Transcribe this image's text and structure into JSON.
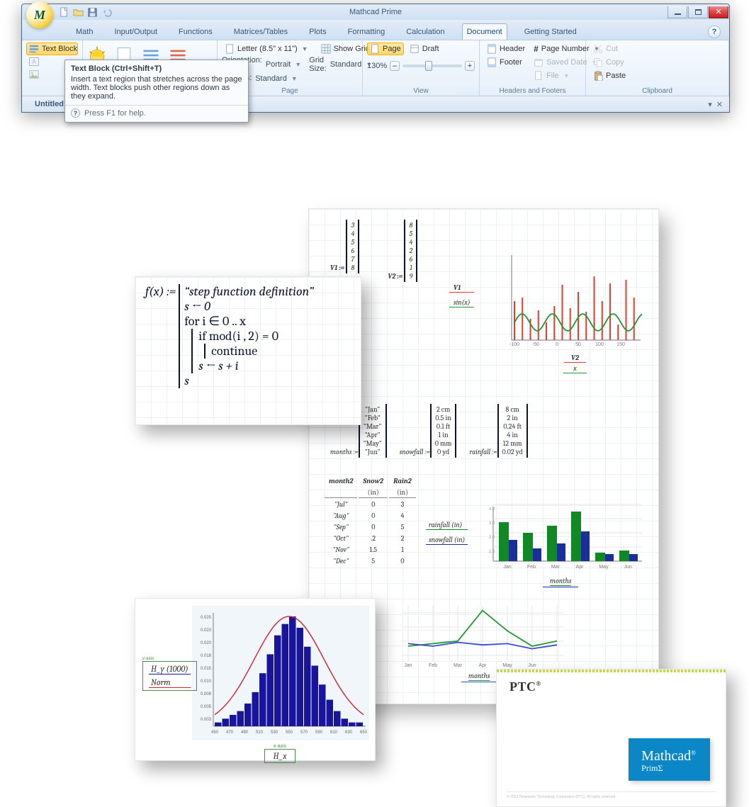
{
  "window": {
    "title": "Mathcad Prime"
  },
  "qat": {
    "orb": "M"
  },
  "tabs": {
    "items": [
      "Math",
      "Input/Output",
      "Functions",
      "Matrices/Tables",
      "Plots",
      "Formatting",
      "Calculation",
      "Document",
      "Getting Started"
    ],
    "active": "Document"
  },
  "ribbon": {
    "textblock": {
      "label": "Text Block",
      "tooltip_title": "Text Block (Ctrl+Shift+T)",
      "tooltip_body": "Insert a text region that stretches across the page width. Text blocks push other regions down as they expand.",
      "tooltip_help": "Press F1 for help."
    },
    "page_group": {
      "label": "Page",
      "size_label": "Letter (8.5\" x 11\")",
      "orientation_lbl": "Orientation:",
      "orientation_val": "Portrait",
      "margins_lbl": "Margins:",
      "margins_val": "Standard",
      "showgrid": "Show Grid",
      "gridsize_lbl": "Grid Size:",
      "gridsize_val": "Standard"
    },
    "view_group": {
      "label": "View",
      "page": "Page",
      "draft": "Draft",
      "zoom": "130%",
      "zoom_btn_minus": "–",
      "zoom_btn_plus": "+"
    },
    "hf_group": {
      "label": "Headers and Footers",
      "header": "Header",
      "footer": "Footer",
      "pagenum": "Page Number",
      "saved": "Saved Date",
      "file": "File"
    },
    "clip_group": {
      "label": "Clipboard",
      "cut": "Cut",
      "copy": "Copy",
      "paste": "Paste"
    }
  },
  "doctab": "Untitled",
  "worksheet": {
    "v1_label": "V1 :=",
    "v1_values": [
      "3",
      "4",
      "5",
      "6",
      "7",
      "8"
    ],
    "v2_label": "V2 :=",
    "v2_values": [
      "8",
      "5",
      "4",
      "2",
      "6",
      "1",
      "9"
    ],
    "chart1": {
      "legend1": "V1",
      "legend2": "sin(x)",
      "legend3_a": "V2",
      "legend3_b": "x",
      "red_bars": [
        55,
        60,
        30,
        42,
        25,
        48,
        78,
        45,
        68,
        40,
        90,
        55,
        80,
        22,
        85,
        60
      ],
      "green_wave_amp": 12,
      "green_wave_periods": 4.2,
      "axis_min": "-200",
      "axis_max": "200",
      "axis_ticks": [
        "-100",
        "-50",
        "0",
        "50",
        "100",
        "150"
      ],
      "colors": {
        "bar": "#e83b2a",
        "wave": "#1f9a2e",
        "axis": "#8f8f8f"
      }
    },
    "months": {
      "label": "months :=",
      "items": [
        "\"Jan\"",
        "\"Feb\"",
        "\"Mar\"",
        "\"Apr\"",
        "\"May\"",
        "\"Jun\""
      ]
    },
    "snow": {
      "label": "snowfall :=",
      "items": [
        "2 cm",
        "0.5 in",
        "0.1 ft",
        "1 in",
        "0 mm",
        "0 yd"
      ]
    },
    "rain": {
      "label": "rainfall :=",
      "items": [
        "8 cm",
        "2 in",
        "0.24 ft",
        "4 in",
        "12 mm",
        "0.02 yd"
      ]
    },
    "table2": {
      "headers": [
        "month2",
        "Snow2",
        "Rain2"
      ],
      "units": [
        "",
        "(in)",
        "(in)"
      ],
      "rows": [
        [
          "\"Jul\"",
          "0",
          "3"
        ],
        [
          "\"Aug\"",
          "0",
          "4"
        ],
        [
          "\"Sep\"",
          "0",
          "5"
        ],
        [
          "\"Oct\"",
          ".2",
          "2"
        ],
        [
          "\"Nov\"",
          "1.5",
          "1"
        ],
        [
          "\"Dec\"",
          "5",
          "0"
        ]
      ]
    },
    "chart2": {
      "legend_rain": "rainfall  (in)",
      "legend_snow": "snowfall  (in)",
      "cats": [
        "Jan",
        "Feb",
        "Mar",
        "Apr",
        "May",
        "Jun"
      ],
      "rain": [
        55,
        40,
        50,
        70,
        12,
        15
      ],
      "snow": [
        30,
        18,
        25,
        42,
        10,
        10
      ],
      "label_below": "months",
      "colors": {
        "rain": "#0f8a22",
        "snow": "#1a2e9c"
      }
    },
    "chart3": {
      "series_a": [
        10,
        12,
        14,
        38,
        22,
        10,
        14
      ],
      "series_b": [
        12,
        10,
        13,
        11,
        12,
        8,
        11
      ],
      "cats": [
        "Jan",
        "Feb",
        "Mar",
        "Apr",
        "May",
        "Jun",
        ""
      ],
      "label_below": "months",
      "colors": {
        "a": "#1f9a2e",
        "b": "#3a4bd8"
      }
    }
  },
  "formula": {
    "line1_lhs": "f(x) :=",
    "line1_rhs": "“step function definition”",
    "l2": "s ← 0",
    "l3": "for i ∈ 0 .. x",
    "l4": "if mod(i , 2) = 0",
    "l5": "continue",
    "l6": "s ← s + i",
    "l7": "s"
  },
  "histogram": {
    "x_label": "H_x",
    "legend1": "H_y  (1000)",
    "legend2": "Norm",
    "y_ticks": [
      "0.025",
      "0.023",
      "0.020",
      "0.018",
      "0.015",
      "0.010",
      "0.008",
      "0.005",
      "0.003"
    ],
    "x_ticks": [
      "450",
      "470",
      "490",
      "510",
      "530",
      "550",
      "570",
      "590",
      "610",
      "630",
      "650"
    ],
    "bars": [
      1,
      2,
      3,
      4,
      6,
      9,
      14,
      19,
      24,
      27,
      29,
      26,
      21,
      16,
      11,
      7,
      4,
      2,
      1,
      1
    ],
    "ytitle": "y-axis",
    "xtitle": "x-axis",
    "colors": {
      "bar": "#19149c",
      "curve": "#d9202a",
      "bg": "#f0f6fa"
    }
  },
  "promo": {
    "brand": "PTC",
    "product": "Mathcad",
    "sub": "PrimΣ",
    "footer_color": "#bcbcbc"
  }
}
